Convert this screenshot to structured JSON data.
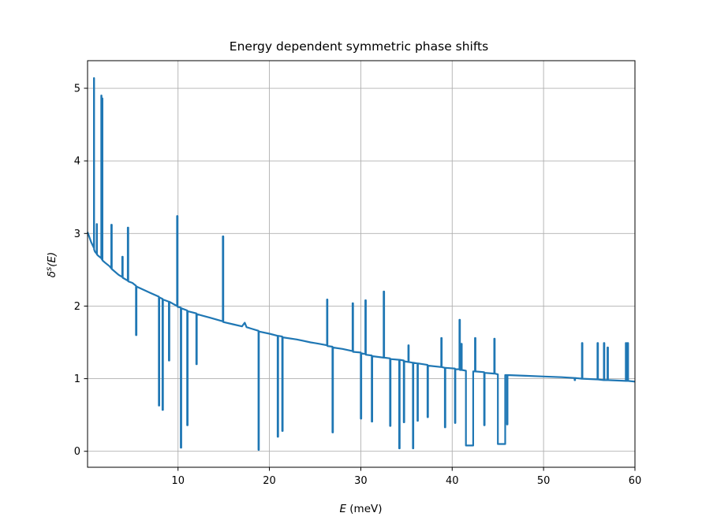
{
  "chart_data": {
    "type": "line",
    "title": "Energy dependent symmetric phase shifts",
    "xlabel_var": "E",
    "xlabel_unit": " (meV)",
    "ylabel_var": "δ",
    "ylabel_sup": "s",
    "ylabel_arg": "(E)",
    "xlim": [
      0.1,
      60
    ],
    "ylim": [
      -0.22,
      5.38
    ],
    "xticks": [
      10,
      20,
      30,
      40,
      50,
      60
    ],
    "yticks": [
      0,
      1,
      2,
      3,
      4,
      5
    ],
    "grid": true,
    "series": [
      {
        "color": "#1f77b4",
        "x": [
          0.1,
          0.5,
          0.8,
          0.8,
          0.82,
          0.82,
          0.9,
          1.1,
          1.1,
          1.13,
          1.13,
          1.3,
          1.6,
          1.6,
          1.63,
          1.63,
          1.7,
          1.7,
          1.73,
          1.73,
          2.0,
          2.5,
          2.7,
          2.7,
          2.75,
          2.75,
          3.5,
          3.9,
          3.9,
          3.95,
          3.95,
          4.5,
          4.5,
          4.55,
          4.55,
          5.0,
          5.4,
          5.4,
          5.45,
          5.45,
          7.0,
          7.9,
          7.9,
          7.95,
          7.95,
          8.3,
          8.3,
          8.35,
          8.35,
          9.0,
          9.0,
          9.05,
          9.05,
          9.9,
          9.9,
          9.95,
          9.95,
          10.3,
          10.3,
          10.35,
          10.35,
          11.0,
          11.0,
          11.05,
          11.05,
          12.0,
          12.0,
          12.05,
          12.05,
          13.5,
          14.9,
          14.9,
          14.95,
          14.95,
          16.0,
          17.0,
          17.3,
          17.5,
          18.0,
          18.8,
          18.8,
          18.85,
          18.85,
          20.0,
          20.9,
          20.9,
          20.95,
          20.95,
          21.4,
          21.4,
          21.45,
          21.45,
          23.0,
          24.5,
          25.0,
          25.5,
          26.3,
          26.3,
          26.35,
          26.35,
          26.9,
          26.9,
          26.95,
          26.95,
          28.0,
          29.1,
          29.1,
          29.15,
          29.15,
          30.0,
          30.0,
          30.05,
          30.05,
          30.5,
          30.5,
          30.55,
          30.55,
          31.2,
          31.2,
          31.25,
          31.25,
          32.5,
          32.5,
          32.55,
          32.55,
          33.2,
          33.2,
          33.25,
          33.25,
          34.2,
          34.2,
          34.25,
          34.25,
          34.7,
          34.7,
          34.75,
          34.75,
          35.2,
          35.2,
          35.25,
          35.25,
          35.7,
          35.7,
          35.75,
          35.75,
          36.2,
          36.2,
          36.25,
          36.25,
          37.3,
          37.3,
          37.35,
          37.35,
          38.8,
          38.8,
          38.85,
          38.85,
          39.2,
          39.2,
          39.25,
          39.25,
          40.3,
          40.3,
          40.35,
          40.35,
          40.8,
          40.8,
          40.85,
          40.85,
          41.0,
          41.0,
          41.05,
          41.05,
          41.5,
          41.5,
          42.3,
          42.3,
          42.5,
          42.5,
          42.55,
          42.55,
          43.5,
          43.5,
          43.55,
          43.55,
          44.6,
          44.6,
          44.65,
          44.65,
          45.0,
          45.0,
          45.8,
          45.8,
          46.0,
          46.0,
          46.05,
          46.05,
          48.0,
          50.0,
          52.0,
          53.4,
          53.4,
          53.45,
          53.45,
          54.2,
          54.2,
          54.25,
          54.25,
          55.9,
          55.9,
          55.95,
          55.95,
          56.6,
          56.6,
          56.65,
          56.65,
          57.0,
          57.0,
          57.05,
          57.05,
          59.0,
          59.0,
          59.05,
          59.05,
          59.2,
          59.2,
          59.25,
          59.25,
          60.0
        ],
        "y": [
          3.02,
          2.88,
          2.8,
          5.14,
          5.14,
          2.78,
          2.75,
          2.72,
          3.13,
          3.13,
          2.71,
          2.69,
          2.66,
          4.9,
          4.9,
          2.65,
          2.64,
          4.86,
          4.86,
          2.63,
          2.6,
          2.55,
          2.52,
          3.12,
          3.12,
          2.51,
          2.43,
          2.4,
          2.68,
          2.68,
          2.39,
          2.35,
          3.08,
          3.08,
          2.34,
          2.32,
          2.28,
          1.6,
          1.6,
          2.27,
          2.18,
          2.13,
          0.63,
          0.63,
          2.12,
          2.1,
          0.57,
          0.57,
          2.09,
          2.06,
          1.25,
          1.25,
          2.06,
          2.0,
          3.24,
          3.24,
          1.99,
          1.98,
          0.05,
          0.05,
          1.97,
          1.94,
          0.36,
          0.36,
          1.93,
          1.9,
          1.2,
          1.2,
          1.89,
          1.84,
          1.79,
          2.96,
          2.96,
          1.78,
          1.75,
          1.72,
          1.77,
          1.71,
          1.69,
          1.66,
          0.02,
          0.02,
          1.65,
          1.62,
          1.59,
          0.2,
          0.2,
          1.59,
          1.58,
          0.28,
          0.28,
          1.57,
          1.54,
          1.5,
          1.49,
          1.48,
          1.46,
          2.09,
          2.09,
          1.45,
          1.44,
          0.26,
          0.26,
          1.43,
          1.41,
          1.38,
          2.04,
          2.04,
          1.37,
          1.36,
          0.45,
          0.45,
          1.35,
          1.34,
          2.08,
          2.08,
          1.33,
          1.32,
          0.41,
          0.41,
          1.31,
          1.29,
          2.2,
          2.2,
          1.29,
          1.28,
          0.35,
          0.35,
          1.27,
          1.26,
          0.04,
          0.04,
          1.26,
          1.25,
          0.4,
          0.4,
          1.24,
          1.23,
          1.46,
          1.46,
          1.23,
          1.22,
          0.04,
          0.04,
          1.22,
          1.21,
          0.42,
          0.42,
          1.21,
          1.19,
          0.47,
          0.47,
          1.18,
          1.16,
          1.56,
          1.56,
          1.16,
          1.15,
          0.33,
          0.33,
          1.15,
          1.14,
          0.39,
          0.39,
          1.13,
          1.13,
          1.81,
          1.81,
          1.12,
          1.12,
          1.48,
          1.48,
          1.12,
          1.11,
          0.08,
          0.08,
          1.1,
          1.1,
          1.56,
          1.56,
          1.1,
          1.09,
          0.36,
          0.36,
          1.08,
          1.07,
          1.55,
          1.55,
          1.07,
          1.06,
          0.1,
          0.1,
          1.05,
          1.05,
          0.37,
          0.37,
          1.05,
          1.04,
          1.03,
          1.02,
          1.01,
          0.98,
          0.98,
          1.01,
          1.0,
          1.49,
          1.49,
          1.0,
          0.99,
          1.49,
          1.49,
          0.99,
          0.98,
          1.49,
          1.49,
          0.98,
          0.98,
          1.43,
          1.43,
          0.98,
          0.97,
          1.49,
          1.49,
          0.97,
          0.97,
          1.49,
          1.49,
          0.97,
          0.96
        ]
      }
    ]
  }
}
